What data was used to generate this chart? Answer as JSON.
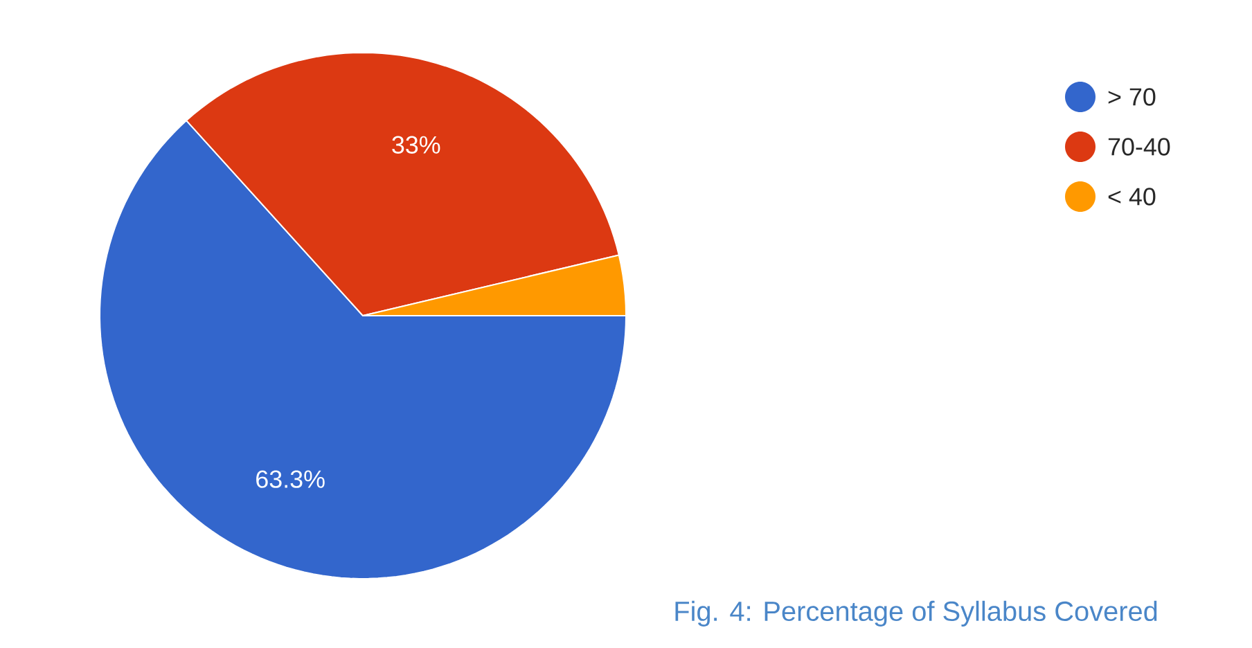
{
  "chart_data": {
    "type": "pie",
    "categories": [
      "> 70",
      "70-40",
      "< 40"
    ],
    "values": [
      63.3,
      33,
      3.7
    ],
    "colors": [
      "#3366cc",
      "#dc3912",
      "#ff9900"
    ],
    "value_labels": [
      "63.3%",
      "33%",
      null
    ],
    "legend": "top right",
    "annotations": [
      "Fig. 4: Percentage of Syllabus Covered"
    ]
  }
}
